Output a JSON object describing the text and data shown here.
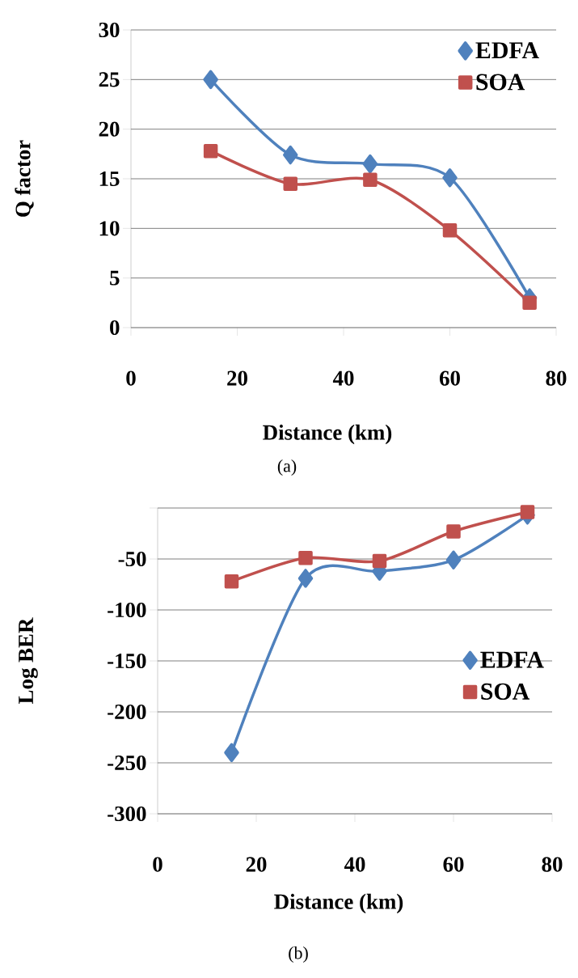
{
  "chart_data": [
    {
      "type": "line",
      "xlabel": "Distance (km)",
      "ylabel": "Q factor",
      "x": [
        15,
        30,
        45,
        60,
        75
      ],
      "xlim": [
        0,
        80
      ],
      "xticks": [
        0,
        20,
        40,
        60,
        80
      ],
      "ylim": [
        0,
        30
      ],
      "yticks": [
        0,
        5,
        10,
        15,
        20,
        25,
        30
      ],
      "grid": "y",
      "legend": "top right",
      "line_style": "solid",
      "series": [
        {
          "name": "EDFA",
          "color": "#4f81bd",
          "marker": "diamond",
          "values": [
            25.0,
            17.4,
            16.5,
            15.1,
            3.0
          ]
        },
        {
          "name": "SOA",
          "color": "#c0504d",
          "marker": "square",
          "values": [
            17.8,
            14.5,
            14.9,
            9.8,
            2.5
          ]
        }
      ],
      "annotations": [
        "(a)"
      ]
    },
    {
      "type": "line",
      "xlabel": "Distance (km)",
      "ylabel": "Log BER",
      "x": [
        15,
        30,
        45,
        60,
        75
      ],
      "xlim": [
        0,
        80
      ],
      "xticks": [
        0,
        20,
        40,
        60,
        80
      ],
      "ylim": [
        -300,
        0
      ],
      "yticks": [
        -300,
        -250,
        -200,
        -150,
        -100,
        -50,
        {
          "value": 0,
          "label": null
        }
      ],
      "grid": "y",
      "legend": "right",
      "line_style": "solid",
      "series": [
        {
          "name": "EDFA",
          "color": "#4f81bd",
          "marker": "diamond",
          "values": [
            -240,
            -69,
            -62,
            -51,
            -7
          ]
        },
        {
          "name": "SOA",
          "color": "#c0504d",
          "marker": "square",
          "values": [
            -72,
            -49,
            -52,
            -23,
            -4
          ]
        }
      ],
      "annotations": [
        "(b)"
      ]
    }
  ]
}
